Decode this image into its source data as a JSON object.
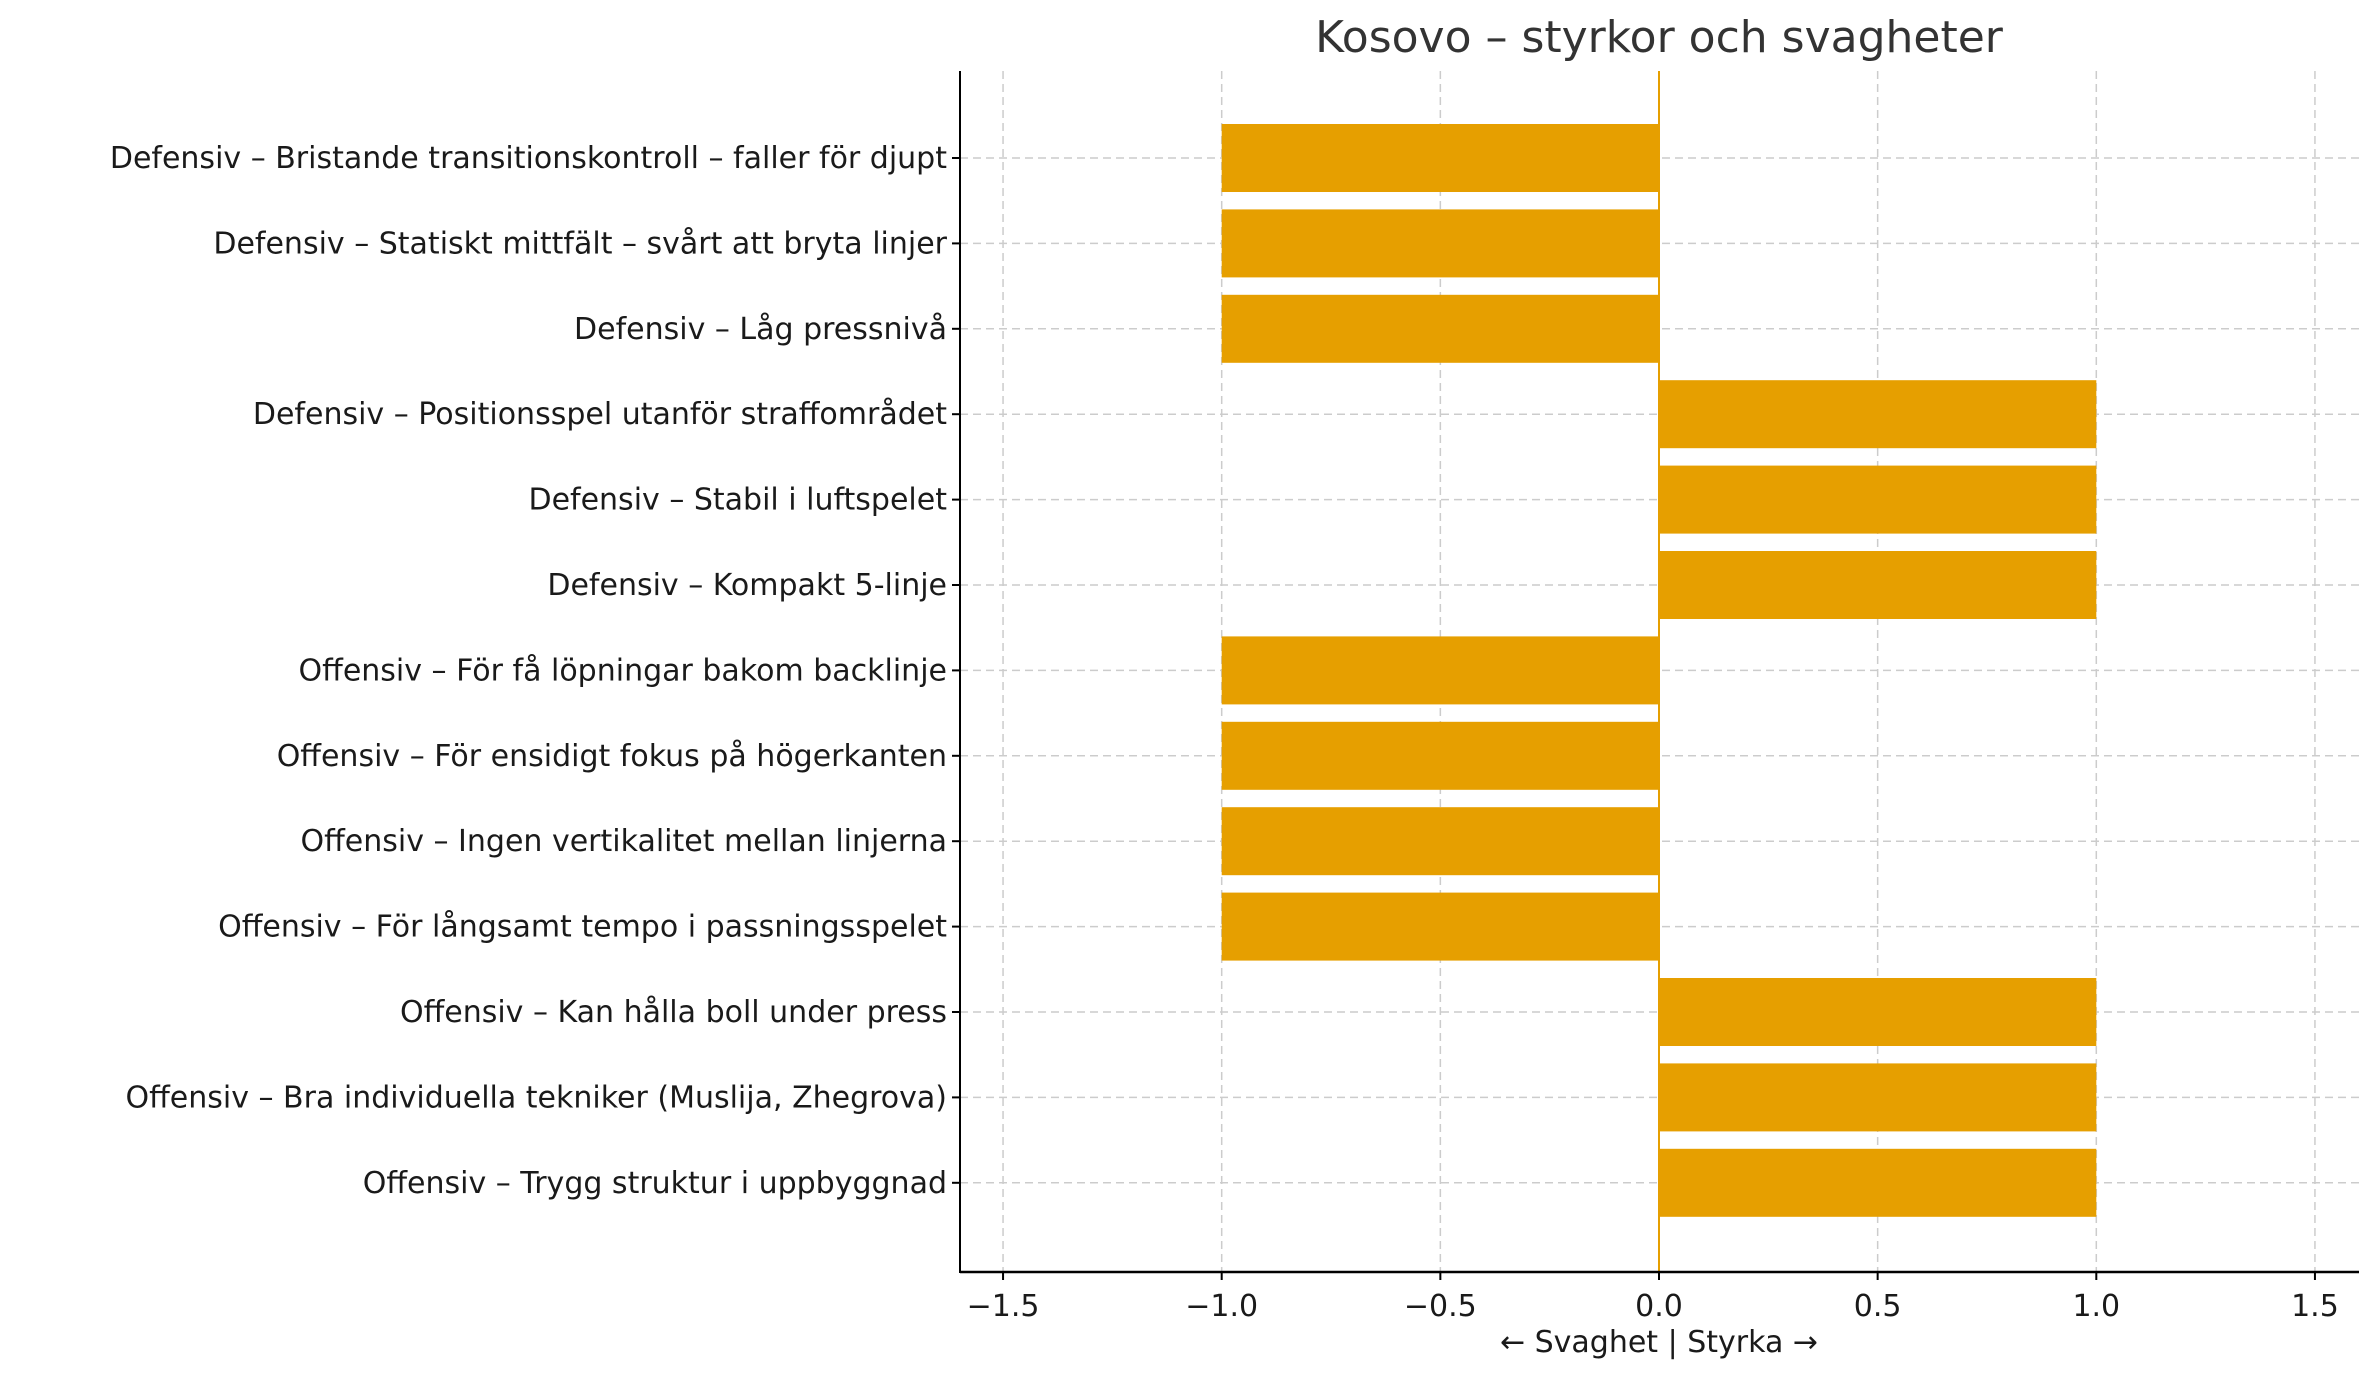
{
  "chart_data": {
    "type": "bar",
    "orientation": "horizontal",
    "title": "Kosovo – styrkor och svagheter",
    "xlabel": "← Svaghet | Styrka →",
    "ylabel": "",
    "xlim": [
      -1.6,
      1.6
    ],
    "xticks": [
      -1.5,
      -1.0,
      -0.5,
      0.0,
      0.5,
      1.0,
      1.5
    ],
    "xtick_labels": [
      "−1.5",
      "−1.0",
      "−0.5",
      "0.0",
      "0.5",
      "1.0",
      "1.5"
    ],
    "grid": true,
    "bar_color": "#E69F00",
    "zero_line_color": "#E69F00",
    "categories": [
      "Defensiv – Bristande transitionskontroll – faller för djupt",
      "Defensiv – Statiskt mittfält – svårt att bryta linjer",
      "Defensiv – Låg pressnivå",
      "Defensiv – Positionsspel utanför straffområdet",
      "Defensiv – Stabil i luftspelet",
      "Defensiv – Kompakt 5-linje",
      "Offensiv – För få löpningar bakom backlinje",
      "Offensiv – För ensidigt fokus på högerkanten",
      "Offensiv – Ingen vertikalitet mellan linjerna",
      "Offensiv – För långsamt tempo i passningsspelet",
      "Offensiv – Kan hålla boll under press",
      "Offensiv – Bra individuella tekniker (Muslija, Zhegrova)",
      "Offensiv – Trygg struktur i uppbyggnad"
    ],
    "values": [
      -1,
      -1,
      -1,
      1,
      1,
      1,
      -1,
      -1,
      -1,
      -1,
      1,
      1,
      1
    ]
  }
}
